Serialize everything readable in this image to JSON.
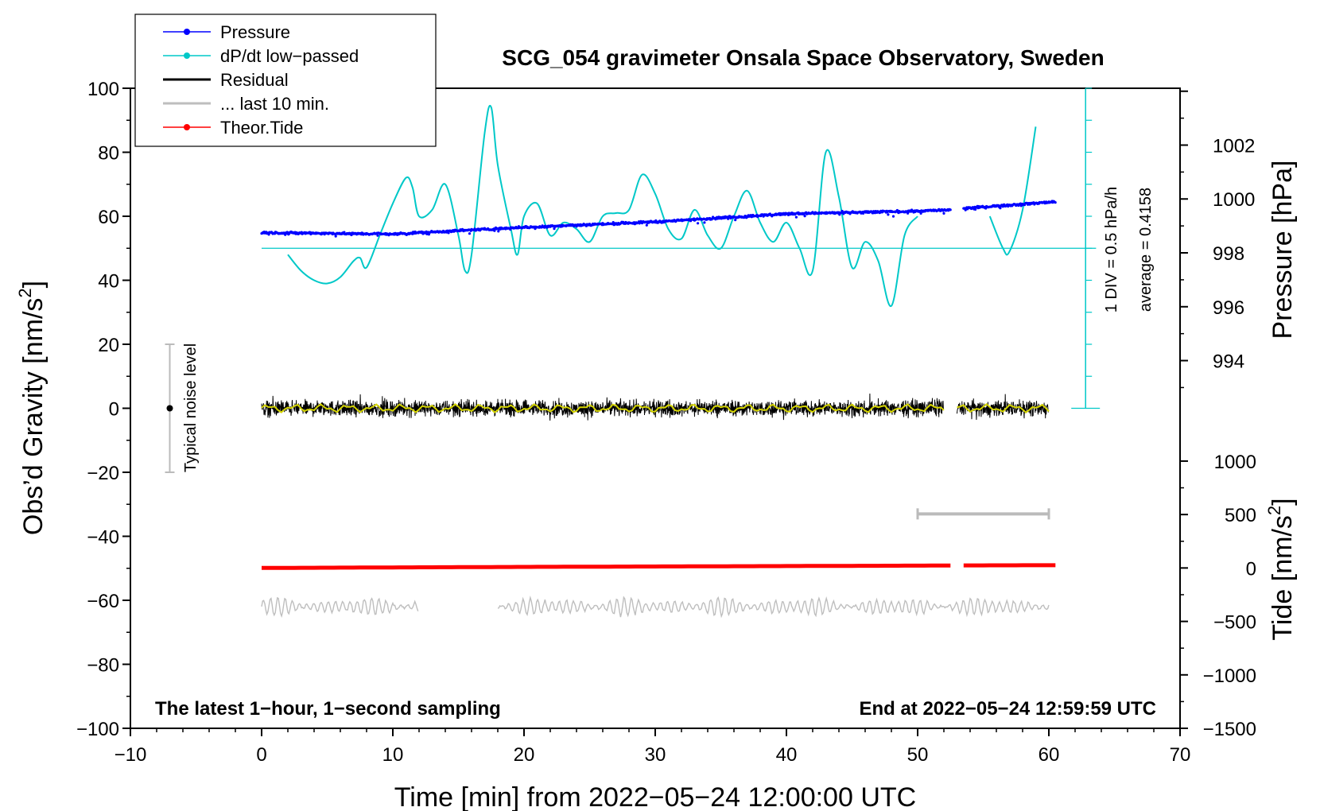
{
  "chart_data": {
    "type": "line",
    "title": "SCG_054 gravimeter Onsala Space Observatory, Sweden",
    "xlabel": "Time [min] from 2022−05−24 12:00:00 UTC",
    "ylabel_left": "Obs’d Gravity [nm/s",
    "ylabel_left_sup": "2",
    "ylabel_left_tail": "]",
    "ylabel_right_top": "Pressure [hPa]",
    "ylabel_right_bottom": "Tide [nm/s",
    "ylabel_right_bottom_sup": "2",
    "ylabel_right_bottom_tail": "]",
    "xlim": [
      -10,
      70
    ],
    "ylim": [
      -100,
      100
    ],
    "x_ticks": [
      -10,
      0,
      10,
      20,
      30,
      40,
      50,
      60,
      70
    ],
    "x_tick_labels": [
      "−10",
      "0",
      "10",
      "20",
      "30",
      "40",
      "50",
      "60",
      "70"
    ],
    "y_ticks": [
      -100,
      -80,
      -60,
      -40,
      -20,
      0,
      20,
      40,
      60,
      80,
      100
    ],
    "y_tick_labels": [
      "−100",
      "−80",
      "−60",
      "−40",
      "−20",
      "0",
      "20",
      "40",
      "60",
      "80",
      "100"
    ],
    "pressure_axis": {
      "ticks": [
        994,
        996,
        998,
        1000,
        1002
      ],
      "tick_labels": [
        "994",
        "996",
        "998",
        "1000",
        "1002"
      ],
      "range_hpa": [
        992.23,
        1004.11
      ]
    },
    "tide_axis": {
      "ticks": [
        -1500,
        -1000,
        -500,
        0,
        500,
        1000
      ],
      "tick_labels": [
        "−1500",
        "−1000",
        "−500",
        "0",
        "500",
        "1000"
      ],
      "range": [
        -1500,
        1000
      ]
    },
    "legend": [
      {
        "label": "Pressure",
        "color": "#0000ff",
        "marker": true
      },
      {
        "label": "dP/dt low−passed",
        "color": "#00c8c8",
        "marker": true
      },
      {
        "label": "Residual",
        "color": "#000000",
        "marker": false
      },
      {
        "label": "... last 10 min.",
        "color": "#bebebe",
        "marker": false
      },
      {
        "label": "Theor.Tide",
        "color": "#ff0000",
        "marker": true
      }
    ],
    "series": [
      {
        "name": "Pressure",
        "units": "hPa",
        "color": "#0000ff",
        "x": [
          0,
          10,
          20,
          30,
          40,
          50,
          52.5,
          53.5,
          60.5
        ],
        "y": [
          998.75,
          998.7,
          998.95,
          999.15,
          999.45,
          999.55,
          999.6,
          999.65,
          999.9
        ]
      },
      {
        "name": "dP/dt low-passed",
        "units": "hPa/h rel. average",
        "color": "#00c8c8",
        "x": [
          2,
          3,
          4,
          5,
          6,
          7,
          7.5,
          8,
          9,
          10,
          11,
          11.5,
          12,
          13,
          14,
          15,
          15.5,
          16,
          17,
          17.5,
          18,
          19,
          19.5,
          20,
          21,
          22,
          23,
          24,
          25,
          26,
          27,
          28,
          29,
          30,
          31,
          32,
          33,
          34,
          35,
          36,
          37,
          38,
          39,
          40,
          41,
          42,
          43,
          44,
          45,
          46,
          47,
          48,
          49,
          50
        ],
        "y": [
          -0.1,
          -0.35,
          -0.5,
          -0.55,
          -0.45,
          -0.2,
          -0.15,
          -0.3,
          0.2,
          0.7,
          1.1,
          0.95,
          0.5,
          0.6,
          1.0,
          0.2,
          -0.35,
          -0.1,
          1.8,
          2.2,
          1.3,
          0.3,
          -0.1,
          0.5,
          0.7,
          0.2,
          0.4,
          0.3,
          0.1,
          0.5,
          0.55,
          0.6,
          1.15,
          0.85,
          0.3,
          0.15,
          0.6,
          0.2,
          0.0,
          0.5,
          0.9,
          0.4,
          0.1,
          0.4,
          0.0,
          -0.35,
          1.5,
          0.8,
          -0.3,
          0.1,
          -0.2,
          -0.9,
          0.2,
          0.5
        ]
      },
      {
        "name": "Residual",
        "units": "nm/s2",
        "color": "#000000",
        "noise_amplitude": 3,
        "x_segments": [
          [
            0,
            52
          ],
          [
            53,
            60
          ]
        ]
      },
      {
        "name": "... last 10 min.",
        "units": "nm/s2",
        "color": "#bebebe",
        "offset": -62,
        "noise_amplitude": 3,
        "x_segments": [
          [
            0,
            12
          ],
          [
            18,
            60
          ]
        ]
      },
      {
        "name": "Theor.Tide",
        "units": "nm/s2",
        "color": "#ff0000",
        "x": [
          0,
          10,
          20,
          30,
          40,
          50,
          52.5,
          53.5,
          60.5
        ],
        "y": [
          0,
          5,
          10,
          14,
          18,
          22,
          23,
          24,
          26
        ]
      }
    ],
    "noise_bar": {
      "label": "Typical noise level",
      "x": -7,
      "y": 0,
      "half_range": 20
    },
    "last10_bar": {
      "x_from": 50,
      "x_to": 60,
      "y": -33
    },
    "annotations": {
      "div_note": "1 DIV = 0.5 hPa/h",
      "average_note": "average = 0.4158",
      "left_note": "The latest 1−hour, 1−second sampling",
      "right_note": "End at 2022−05−24 12:59:59 UTC"
    }
  }
}
